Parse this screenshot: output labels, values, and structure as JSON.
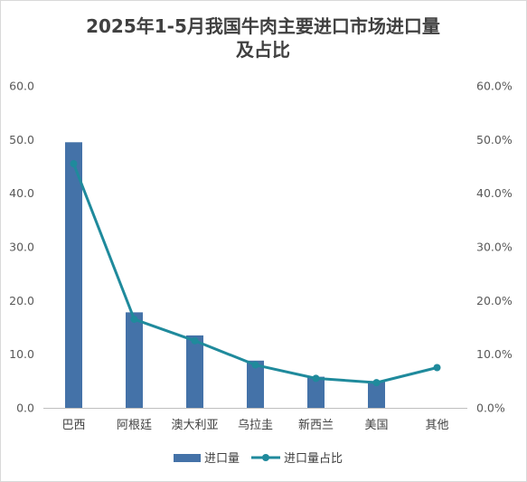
{
  "colors": {
    "bar": "#4472a8",
    "line": "#1f8a9c",
    "baseline": "#bfbfbf"
  },
  "chart_data": {
    "type": "bar",
    "title_lines": [
      "2025年1-5月我国牛肉主要进口市场进口量",
      "及占比"
    ],
    "categories": [
      "巴西",
      "阿根廷",
      "澳大利亚",
      "乌拉圭",
      "新西兰",
      "美国",
      "其他"
    ],
    "series": [
      {
        "name": "进口量",
        "type": "bar",
        "axis": "left",
        "values": [
          49.5,
          17.8,
          13.5,
          8.8,
          5.8,
          5.0,
          null
        ]
      },
      {
        "name": "进口量占比",
        "type": "line",
        "axis": "right",
        "values": [
          45.5,
          16.5,
          12.5,
          8.0,
          5.5,
          4.7,
          7.5
        ]
      }
    ],
    "y_left": {
      "ylim": [
        0,
        60
      ],
      "ticks": [
        "0.0",
        "10.0",
        "20.0",
        "30.0",
        "40.0",
        "50.0",
        "60.0"
      ]
    },
    "y_right": {
      "ylim": [
        0,
        60
      ],
      "ticks": [
        "0.0%",
        "10.0%",
        "20.0%",
        "30.0%",
        "40.0%",
        "50.0%",
        "60.0%"
      ]
    },
    "grid": false,
    "legend_position": "bottom"
  }
}
